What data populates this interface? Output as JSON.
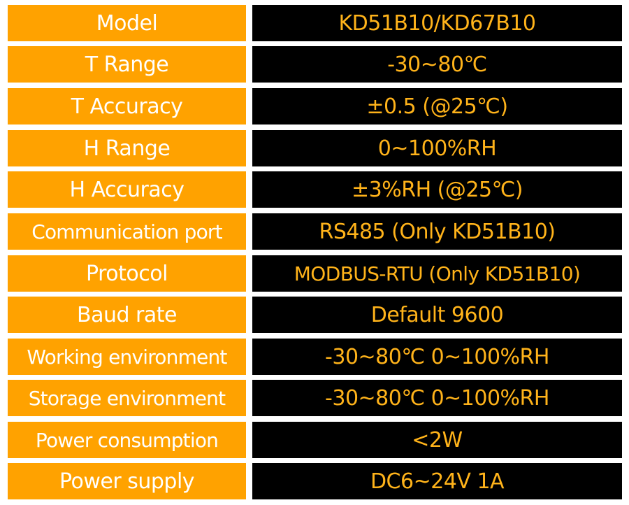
{
  "colors": {
    "label_bg": "#ffa200",
    "label_text": "#ffffff",
    "value_bg": "#000000",
    "value_text": "#ffb31a"
  },
  "spec_table": {
    "rows": [
      {
        "label": "Model",
        "value": "KD51B10/KD67B10"
      },
      {
        "label": "T Range",
        "value": "-30~80℃"
      },
      {
        "label": "T Accuracy",
        "value": "±0.5 (@25℃)"
      },
      {
        "label": "H Range",
        "value": "0~100%RH"
      },
      {
        "label": "H Accuracy",
        "value": "±3%RH (@25℃)"
      },
      {
        "label": "Communication port",
        "value": "RS485 (Only KD51B10)"
      },
      {
        "label": "Protocol",
        "value": "MODBUS-RTU (Only KD51B10)"
      },
      {
        "label": "Baud rate",
        "value": "Default 9600"
      },
      {
        "label": "Working environment",
        "value": "-30~80℃  0~100%RH"
      },
      {
        "label": "Storage environment",
        "value": "-30~80℃  0~100%RH"
      },
      {
        "label": "Power consumption",
        "value": "<2W"
      },
      {
        "label": "Power supply",
        "value": "DC6~24V 1A"
      }
    ]
  }
}
